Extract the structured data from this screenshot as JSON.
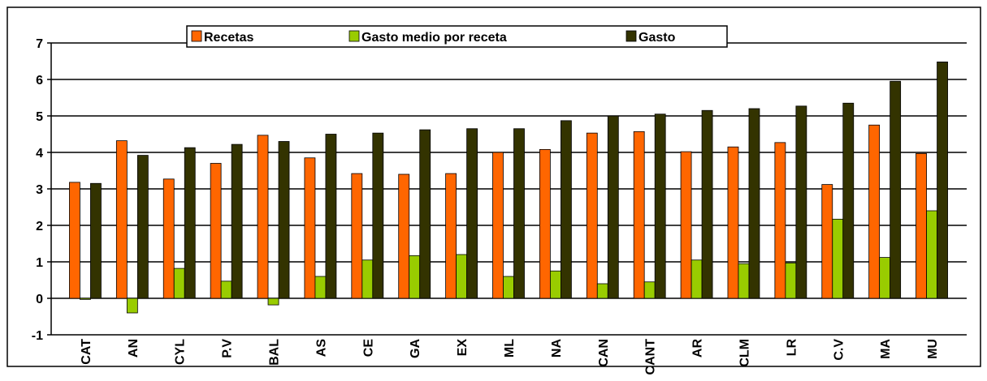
{
  "chart_data": {
    "type": "bar",
    "categories": [
      "CAT",
      "AN",
      "CYL",
      "P.V",
      "BAL",
      "AS",
      "CE",
      "GA",
      "EX",
      "ML",
      "NA",
      "CAN",
      "CANT",
      "AR",
      "CLM",
      "LR",
      "C.V",
      "MA",
      "MU"
    ],
    "series": [
      {
        "name": "Recetas",
        "color": "#ff6600",
        "values": [
          3.18,
          4.32,
          3.27,
          3.7,
          4.47,
          3.85,
          3.42,
          3.4,
          3.42,
          4.0,
          4.08,
          4.53,
          4.57,
          4.02,
          4.15,
          4.27,
          3.12,
          4.75,
          3.97
        ]
      },
      {
        "name": "Gasto medio por receta",
        "color": "#99cc00",
        "values": [
          -0.03,
          -0.4,
          0.82,
          0.47,
          -0.18,
          0.6,
          1.05,
          1.17,
          1.2,
          0.6,
          0.75,
          0.4,
          0.45,
          1.05,
          0.95,
          0.97,
          2.17,
          1.12,
          2.4
        ]
      },
      {
        "name": "Gasto",
        "color": "#333300",
        "values": [
          3.15,
          3.92,
          4.13,
          4.22,
          4.3,
          4.5,
          4.53,
          4.62,
          4.65,
          4.65,
          4.87,
          5.0,
          5.05,
          5.15,
          5.2,
          5.27,
          5.35,
          5.95,
          6.48
        ]
      }
    ],
    "ylim": [
      -1,
      7
    ],
    "yticks": [
      -1,
      0,
      1,
      2,
      3,
      4,
      5,
      6,
      7
    ],
    "grid": true
  }
}
